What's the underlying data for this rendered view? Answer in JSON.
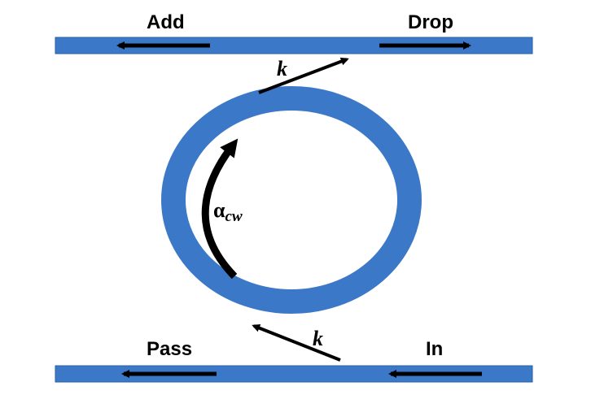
{
  "labels": {
    "add": "Add",
    "drop": "Drop",
    "pass": "Pass",
    "in": "In",
    "coupling_top": "k",
    "coupling_bottom": "k",
    "loss_symbol": "α",
    "loss_subscript": "cw"
  },
  "colors": {
    "waveguide": "#3c78c8",
    "waveguide_edge": "#2b5fa3",
    "arrow": "#000000",
    "background": "#ffffff"
  }
}
